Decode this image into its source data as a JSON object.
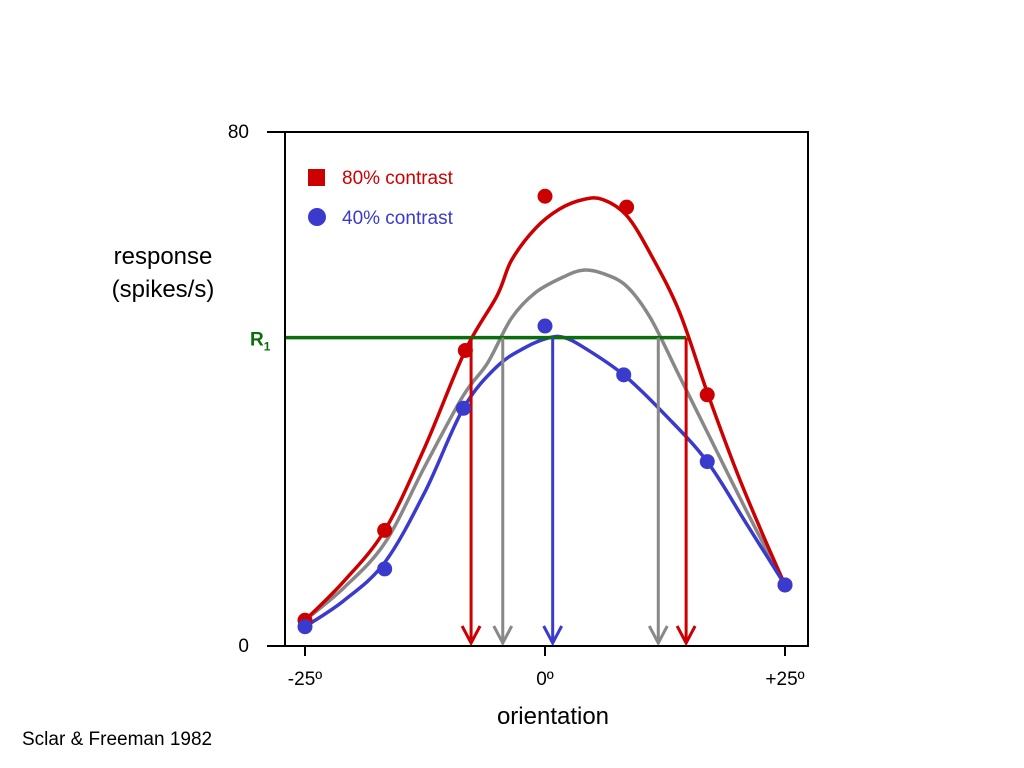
{
  "chart_data": {
    "type": "line",
    "xlabel": "orientation",
    "ylabel_lines": [
      "response",
      "(spikes/s)"
    ],
    "xlim": [
      -25,
      25
    ],
    "ylim": [
      0,
      80
    ],
    "xticks": [
      {
        "value": -25,
        "label": "-25º"
      },
      {
        "value": 0,
        "label": "0º"
      },
      {
        "value": 25,
        "label": "+25º"
      }
    ],
    "yticks": [
      {
        "value": 0,
        "label": "0"
      },
      {
        "value": 80,
        "label": "80"
      }
    ],
    "legend": [
      {
        "label": "80% contrast",
        "color": "#cc0000",
        "marker": "square"
      },
      {
        "label": "40% contrast",
        "color": "#3a3acc",
        "marker": "circle"
      }
    ],
    "series": [
      {
        "name": "80% contrast",
        "color": "#cc0000",
        "points": [
          {
            "x": -25,
            "y": 4
          },
          {
            "x": -16.7,
            "y": 18
          },
          {
            "x": -8.3,
            "y": 46
          },
          {
            "x": 0,
            "y": 70
          },
          {
            "x": 8.5,
            "y": 68.3
          },
          {
            "x": 16.9,
            "y": 39.1
          },
          {
            "x": 25,
            "y": 9.5
          }
        ],
        "curve": [
          {
            "x": -25,
            "y": 4
          },
          {
            "x": -21,
            "y": 10
          },
          {
            "x": -16.7,
            "y": 18
          },
          {
            "x": -12.5,
            "y": 31
          },
          {
            "x": -8.3,
            "y": 46
          },
          {
            "x": -5,
            "y": 54.5
          },
          {
            "x": -3.5,
            "y": 60
          },
          {
            "x": -1,
            "y": 65
          },
          {
            "x": 1.5,
            "y": 68
          },
          {
            "x": 4,
            "y": 69.5
          },
          {
            "x": 6,
            "y": 69.5
          },
          {
            "x": 8.5,
            "y": 67
          },
          {
            "x": 11,
            "y": 61
          },
          {
            "x": 14,
            "y": 52
          },
          {
            "x": 16.9,
            "y": 39.5
          },
          {
            "x": 20,
            "y": 27
          },
          {
            "x": 22.5,
            "y": 18
          },
          {
            "x": 25,
            "y": 9.5
          }
        ]
      },
      {
        "name": "40% contrast",
        "color": "#3a3acc",
        "points": [
          {
            "x": -25,
            "y": 3
          },
          {
            "x": -16.7,
            "y": 12
          },
          {
            "x": -8.5,
            "y": 37
          },
          {
            "x": 0,
            "y": 49.8
          },
          {
            "x": 8.2,
            "y": 42.2
          },
          {
            "x": 16.9,
            "y": 28.7
          },
          {
            "x": 25,
            "y": 9.5
          }
        ],
        "curve": [
          {
            "x": -25,
            "y": 3
          },
          {
            "x": -21,
            "y": 7
          },
          {
            "x": -16.7,
            "y": 13
          },
          {
            "x": -12.5,
            "y": 24
          },
          {
            "x": -8.5,
            "y": 37
          },
          {
            "x": -5,
            "y": 43.5
          },
          {
            "x": -2,
            "y": 46.5
          },
          {
            "x": 0.5,
            "y": 48
          },
          {
            "x": 2,
            "y": 48
          },
          {
            "x": 4,
            "y": 46.5
          },
          {
            "x": 8.2,
            "y": 42.2
          },
          {
            "x": 12.5,
            "y": 36
          },
          {
            "x": 16.9,
            "y": 28.7
          },
          {
            "x": 21,
            "y": 19
          },
          {
            "x": 25,
            "y": 9.5
          }
        ]
      },
      {
        "name": "",
        "color": "#888888",
        "points": [],
        "curve": [
          {
            "x": -25,
            "y": 4
          },
          {
            "x": -21,
            "y": 9
          },
          {
            "x": -16.7,
            "y": 16
          },
          {
            "x": -12.5,
            "y": 28
          },
          {
            "x": -8.5,
            "y": 39
          },
          {
            "x": -6,
            "y": 44
          },
          {
            "x": -3.5,
            "y": 51
          },
          {
            "x": -1,
            "y": 55
          },
          {
            "x": 2,
            "y": 57.5
          },
          {
            "x": 4,
            "y": 58.5
          },
          {
            "x": 6,
            "y": 58
          },
          {
            "x": 8.5,
            "y": 56
          },
          {
            "x": 11,
            "y": 51
          },
          {
            "x": 14,
            "y": 42
          },
          {
            "x": 17,
            "y": 33
          },
          {
            "x": 21,
            "y": 21
          },
          {
            "x": 25,
            "y": 9.5
          }
        ]
      }
    ],
    "threshold": {
      "label": "R",
      "subscript": "1",
      "y": 48,
      "x_end": 14.7,
      "color": "#0a6e0a"
    },
    "arrows": [
      {
        "x": -7.7,
        "color": "#cc0000"
      },
      {
        "x": -4.4,
        "color": "#888888"
      },
      {
        "x": 0.8,
        "color": "#3a3acc"
      },
      {
        "x": 11.8,
        "color": "#888888"
      },
      {
        "x": 14.7,
        "color": "#cc0000"
      }
    ],
    "annotation": "Sclar & Freeman 1982"
  }
}
